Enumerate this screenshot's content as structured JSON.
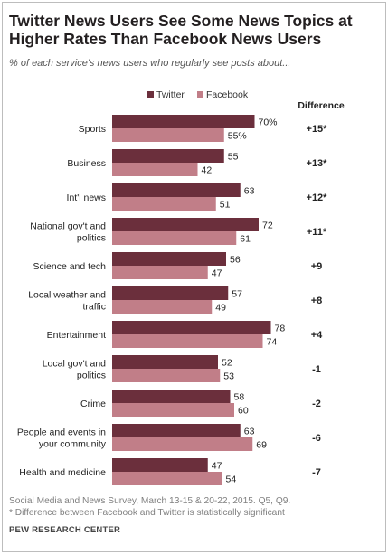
{
  "title": "Twitter News Users See Some News Topics at Higher Rates Than Facebook News Users",
  "subtitle": "% of each service's news users who regularly see posts about...",
  "footnotes": [
    "Social Media and News Survey, March 13-15 & 20-22, 2015. Q5, Q9.",
    "* Difference between Facebook and Twitter is statistically significant"
  ],
  "source_org": "PEW RESEARCH CENTER",
  "colors": {
    "twitter": "#6b2f3c",
    "facebook": "#c17e88"
  },
  "chart_data": {
    "type": "bar",
    "orientation": "horizontal",
    "legend_position": "top",
    "difference_header": "Difference",
    "categories": [
      [
        "Sports"
      ],
      [
        "Business"
      ],
      [
        "Int'l news"
      ],
      [
        "National gov't and",
        "politics"
      ],
      [
        "Science and tech"
      ],
      [
        "Local weather and",
        "traffic"
      ],
      [
        "Entertainment"
      ],
      [
        "Local gov't and",
        "politics"
      ],
      [
        "Crime"
      ],
      [
        "People and events in",
        "your community"
      ],
      [
        "Health and medicine"
      ]
    ],
    "series": [
      {
        "name": "Twitter",
        "values": [
          70,
          55,
          63,
          72,
          56,
          57,
          78,
          52,
          58,
          63,
          47
        ],
        "labels": [
          "70%",
          "55",
          "63",
          "72",
          "56",
          "57",
          "78",
          "52",
          "58",
          "63",
          "47"
        ]
      },
      {
        "name": "Facebook",
        "values": [
          55,
          42,
          51,
          61,
          47,
          49,
          74,
          53,
          60,
          69,
          54
        ],
        "labels": [
          "55%",
          "42",
          "51",
          "61",
          "47",
          "49",
          "74",
          "53",
          "60",
          "69",
          "54"
        ]
      }
    ],
    "differences": [
      "+15*",
      "+13*",
      "+12*",
      "+11*",
      "+9",
      "+8",
      "+4",
      "-1",
      "-2",
      "-6",
      "-7"
    ]
  }
}
